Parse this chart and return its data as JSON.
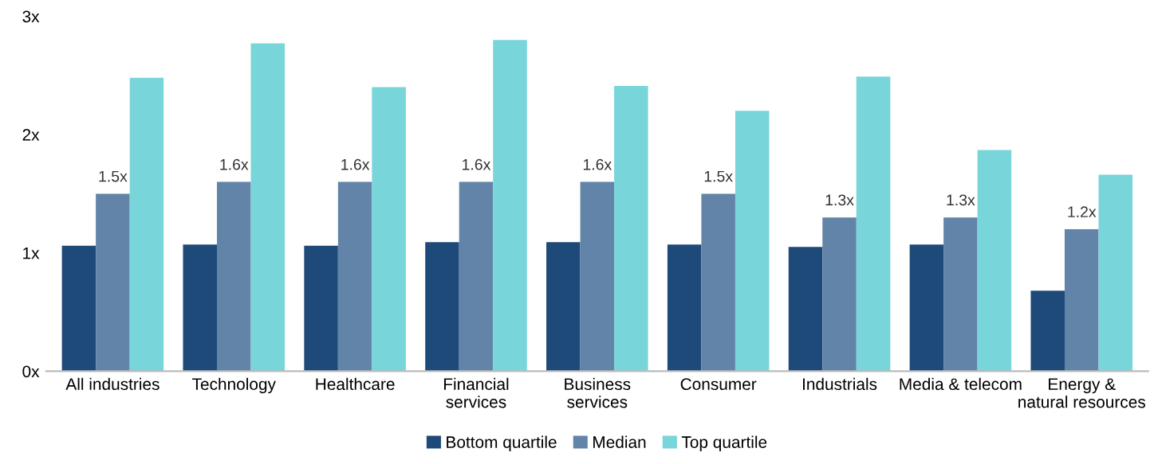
{
  "chart_data": {
    "type": "bar",
    "categories": [
      "All industries",
      "Technology",
      "Healthcare",
      "Financial\nservices",
      "Business\nservices",
      "Consumer",
      "Industrials",
      "Media & telecom",
      "Energy &\nnatural resources"
    ],
    "series": [
      {
        "name": "Bottom quartile",
        "color": "#1e4a7a",
        "values": [
          1.06,
          1.07,
          1.06,
          1.09,
          1.09,
          1.07,
          1.05,
          1.07,
          0.68
        ]
      },
      {
        "name": "Median",
        "color": "#6284a8",
        "values": [
          1.5,
          1.6,
          1.6,
          1.6,
          1.6,
          1.5,
          1.3,
          1.3,
          1.2
        ],
        "value_labels": [
          "1.5x",
          "1.6x",
          "1.6x",
          "1.6x",
          "1.6x",
          "1.5x",
          "1.3x",
          "1.3x",
          "1.2x"
        ]
      },
      {
        "name": "Top quartile",
        "color": "#78d5d9",
        "values": [
          2.48,
          2.77,
          2.4,
          2.8,
          2.41,
          2.2,
          2.49,
          1.87,
          1.66
        ]
      }
    ],
    "ylim": [
      0,
      3
    ],
    "yticks": [
      {
        "value": 0,
        "label": "0x"
      },
      {
        "value": 1,
        "label": "1x"
      },
      {
        "value": 2,
        "label": "2x"
      },
      {
        "value": 3,
        "label": "3x"
      }
    ],
    "grid": false,
    "legend": "bottom"
  }
}
